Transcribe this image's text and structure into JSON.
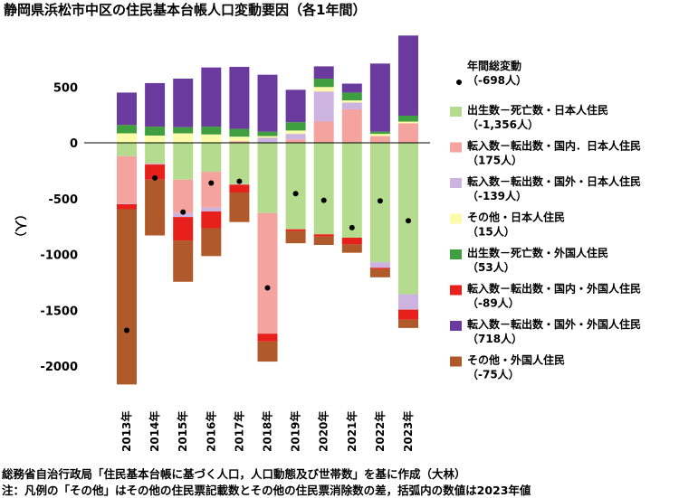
{
  "chart_data": {
    "type": "bar",
    "stacked": true,
    "title": "静岡県浜松市中区の住民基本台帳人口変動要因（各1年間）",
    "ylabel": "（人）",
    "ylim": [
      -2150,
      950
    ],
    "yticks": [
      500,
      0,
      -500,
      -1000,
      -1500,
      -2000
    ],
    "ytick_labels": [
      "500",
      "0",
      "-500",
      "-1000",
      "-1500",
      "-2000"
    ],
    "categories": [
      "2013年",
      "2014年",
      "2015年",
      "2016年",
      "2017年",
      "2018年",
      "2019年",
      "2020年",
      "2021年",
      "2022年",
      "2023年"
    ],
    "series": [
      {
        "key": "nat_jp",
        "name": "出生数－死亡数・日本人住民",
        "paren": "（-1,356人）",
        "color": "#b5dc8e",
        "values": [
          -120,
          -185,
          -330,
          -260,
          -370,
          -630,
          -775,
          -820,
          -850,
          -1070,
          -1356
        ]
      },
      {
        "key": "dom_jp",
        "name": "転入数－転出数・国内．日本人住民",
        "paren": "（175人）",
        "color": "#f4a39e",
        "values": [
          -425,
          -5,
          -300,
          -320,
          15,
          -1080,
          30,
          190,
          300,
          60,
          175
        ]
      },
      {
        "key": "intl_jp",
        "name": "転入数－転出数・国外・日本人住民",
        "paren": "（-139人）",
        "color": "#ccb3e0",
        "values": [
          -5,
          -5,
          -35,
          -35,
          -5,
          45,
          50,
          270,
          60,
          -50,
          -139
        ]
      },
      {
        "key": "oth_jp",
        "name": "その他・日本人住民",
        "paren": "（15人）",
        "color": "#fbfbaa",
        "values": [
          85,
          65,
          85,
          75,
          40,
          15,
          30,
          40,
          20,
          20,
          15
        ]
      },
      {
        "key": "nat_fr",
        "name": "出生数－死亡数・外国人住民",
        "paren": "（53人）",
        "color": "#3f9e3f",
        "values": [
          75,
          80,
          55,
          70,
          70,
          40,
          75,
          75,
          70,
          20,
          53
        ]
      },
      {
        "key": "dom_fr",
        "name": "転入数－転出数・国内・外国人住民",
        "paren": "（-89人）",
        "color": "#e8201c",
        "values": [
          -45,
          -135,
          -210,
          -150,
          -70,
          -70,
          -15,
          -20,
          -60,
          -10,
          -89
        ]
      },
      {
        "key": "intl_fr",
        "name": "転入数－転出数・国外・外国人住民",
        "paren": "（718人）",
        "color": "#6b3a9f",
        "values": [
          290,
          390,
          435,
          530,
          555,
          510,
          290,
          110,
          80,
          610,
          718
        ]
      },
      {
        "key": "oth_fr",
        "name": "その他・外国人住民",
        "paren": "（-75人）",
        "color": "#b0592a",
        "values": [
          -1570,
          -500,
          -370,
          -250,
          -265,
          -180,
          -110,
          -75,
          -75,
          -75,
          -75
        ]
      }
    ],
    "totals": {
      "name": "年間総変動",
      "paren": "（-698人）",
      "values": [
        -1680,
        -315,
        -620,
        -360,
        -345,
        -1300,
        -455,
        -515,
        -760,
        -520,
        -698
      ]
    },
    "grid": false,
    "legend": "right"
  },
  "source_note": "総務省自治行政局「住民基本台帳に基づく人口，人口動態及び世帯数」を基に作成（大林）",
  "footnote": "注：凡例の「その他」はその他の住民票記載数とその他の住民票消除数の差，括弧内の数値は2023年値"
}
